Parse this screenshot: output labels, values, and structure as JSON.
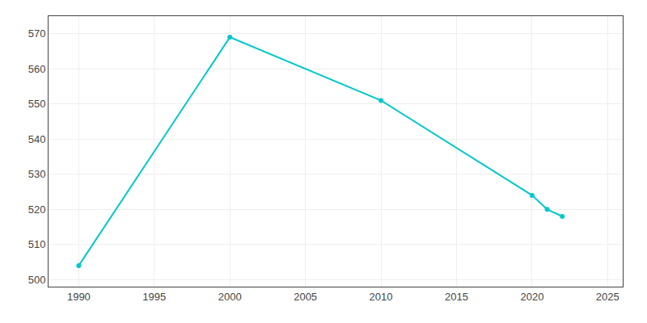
{
  "chart_data": {
    "type": "line",
    "x": [
      1990,
      2000,
      2010,
      2020,
      2021,
      2022
    ],
    "values": [
      504,
      569,
      551,
      524,
      520,
      518
    ],
    "color": "#00c8cc",
    "marker": "circle",
    "xlim": [
      1988,
      2026
    ],
    "ylim": [
      498,
      575
    ],
    "xticks": [
      1990,
      1995,
      2000,
      2005,
      2010,
      2015,
      2020,
      2025
    ],
    "yticks": [
      500,
      510,
      520,
      530,
      540,
      550,
      560,
      570
    ],
    "grid": true
  }
}
